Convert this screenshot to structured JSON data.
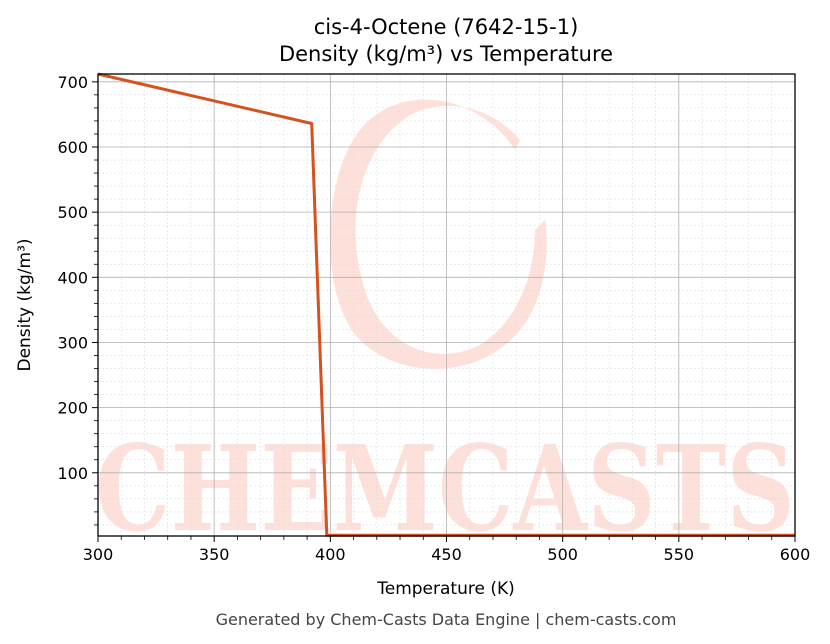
{
  "title_line1": "cis-4-Octene (7642-15-1)",
  "title_line2": "Density (kg/m³) vs Temperature",
  "footer": "Generated by Chem-Casts Data Engine | chem-casts.com",
  "watermark": {
    "text": "CHEMCASTS",
    "color": "#fde0da"
  },
  "colors": {
    "line": "#d4521f",
    "grid_major": "#b0b0b0",
    "grid_minor": "#dddddd"
  },
  "chart_data": {
    "type": "line",
    "title": "cis-4-Octene (7642-15-1) Density (kg/m³) vs Temperature",
    "xlabel": "Temperature (K)",
    "ylabel": "Density (kg/m³)",
    "xlim": [
      300,
      600
    ],
    "ylim": [
      3,
      712
    ],
    "xticks": [
      300,
      350,
      400,
      450,
      500,
      550,
      600
    ],
    "yticks": [
      100,
      200,
      300,
      400,
      500,
      600,
      700
    ],
    "grid": true,
    "series": [
      {
        "x": [
          300,
          392,
          398.5,
          600
        ],
        "y": [
          712,
          636,
          4,
          4
        ]
      }
    ]
  }
}
